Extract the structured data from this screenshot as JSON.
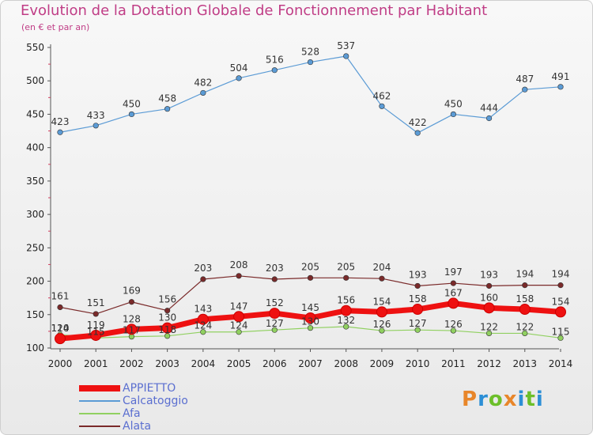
{
  "header": {
    "title": "Evolution de la Dotation Globale de Fonctionnement par Habitant",
    "subtitle": "(en € et par an)"
  },
  "logo": {
    "text": "Proxiti",
    "colors": [
      "#e8862a",
      "#2c8fd6",
      "#6cbf2a",
      "#e8862a",
      "#2c8fd6",
      "#6cbf2a",
      "#2c8fd6"
    ]
  },
  "chart_data": {
    "type": "line",
    "x": [
      "2000",
      "2001",
      "2002",
      "2003",
      "2004",
      "2005",
      "2006",
      "2007",
      "2008",
      "2009",
      "2010",
      "2011",
      "2012",
      "2013",
      "2014"
    ],
    "ylim": [
      100,
      550
    ],
    "yticks": [
      100,
      150,
      200,
      250,
      300,
      350,
      400,
      450,
      500,
      550
    ],
    "grid": false,
    "legend_position": "bottom-left",
    "series": [
      {
        "name": "APPIETTO",
        "color": "#ee1111",
        "values": [
          114,
          119,
          128,
          130,
          143,
          147,
          152,
          145,
          156,
          154,
          158,
          167,
          160,
          158,
          154
        ],
        "labels": [
          "114",
          "119",
          "128",
          "130",
          "143",
          "147",
          "152",
          "145",
          "156",
          "154",
          "158",
          "167",
          "160",
          "158",
          "154"
        ]
      },
      {
        "name": "Calcatoggio",
        "color": "#5b9bd5",
        "values": [
          423,
          433,
          450,
          458,
          482,
          504,
          516,
          528,
          537,
          462,
          422,
          450,
          444,
          487,
          491
        ],
        "labels": [
          "423",
          "433",
          "450",
          "458",
          "482",
          "504",
          "516",
          "528",
          "537",
          "462",
          "422",
          "450",
          "444",
          "487",
          "491"
        ]
      },
      {
        "name": "Afa",
        "color": "#90d060",
        "values": [
          120,
          115,
          117,
          118,
          124,
          124,
          127,
          130,
          132,
          126,
          127,
          126,
          122,
          122,
          115
        ],
        "labels": [
          "120",
          "115",
          "117",
          "118",
          "124",
          "124",
          "127",
          "130",
          "132",
          "126",
          "127",
          "126",
          "122",
          "122",
          "115"
        ]
      },
      {
        "name": "Alata",
        "color": "#7a2a2a",
        "values": [
          161,
          151,
          169,
          156,
          203,
          208,
          203,
          205,
          205,
          204,
          193,
          197,
          193,
          194,
          194
        ],
        "labels": [
          "161",
          "151",
          "169",
          "156",
          "203",
          "208",
          "203",
          "205",
          "205",
          "204",
          "193",
          "197",
          "193",
          "194",
          "194"
        ]
      }
    ]
  }
}
